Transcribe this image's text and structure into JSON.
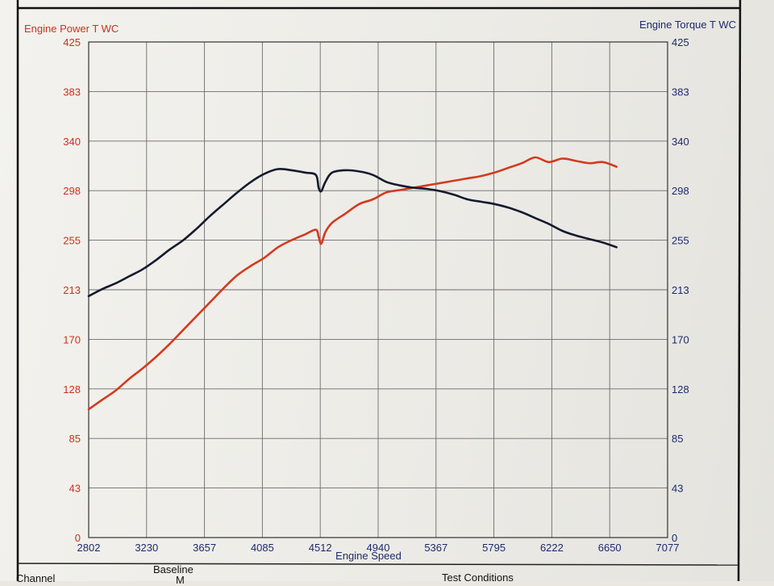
{
  "chart_data": {
    "type": "line",
    "xlabel": "Engine Speed",
    "xlim": [
      2802,
      7077
    ],
    "x_ticks": [
      "2802",
      "3230",
      "3657",
      "4085",
      "4512",
      "4940",
      "5367",
      "5795",
      "6222",
      "6650",
      "7077"
    ],
    "left_axis": {
      "label": "Engine Power T WC",
      "color": "#c8321e",
      "ylim": [
        0,
        425
      ],
      "ticks": [
        "0",
        "43",
        "85",
        "128",
        "170",
        "213",
        "255",
        "298",
        "340",
        "383",
        "425"
      ]
    },
    "right_axis": {
      "label": "Engine Torque T WC",
      "color": "#1d2a6b",
      "ylim": [
        0,
        425
      ],
      "ticks": [
        "0",
        "43",
        "85",
        "128",
        "170",
        "213",
        "255",
        "298",
        "340",
        "383",
        "425"
      ]
    },
    "grid": true,
    "series": [
      {
        "axis": "left",
        "color": "#d23a1e",
        "x": [
          2802,
          2900,
          3000,
          3100,
          3200,
          3300,
          3400,
          3500,
          3600,
          3700,
          3800,
          3900,
          4000,
          4100,
          4200,
          4300,
          4400,
          4480,
          4500,
          4520,
          4550,
          4600,
          4700,
          4800,
          4900,
          5000,
          5100,
          5200,
          5300,
          5400,
          5500,
          5600,
          5700,
          5800,
          5900,
          6000,
          6100,
          6200,
          6300,
          6400,
          6500,
          6600,
          6700
        ],
        "values": [
          110,
          118,
          126,
          136,
          145,
          155,
          166,
          178,
          190,
          202,
          214,
          225,
          233,
          240,
          249,
          255,
          260,
          264,
          258,
          252,
          262,
          270,
          278,
          286,
          290,
          296,
          298,
          300,
          302,
          304,
          306,
          308,
          310,
          313,
          317,
          321,
          326,
          322,
          325,
          323,
          321,
          322,
          318
        ]
      },
      {
        "axis": "right",
        "color": "#151a2e",
        "x": [
          2802,
          2900,
          3000,
          3100,
          3200,
          3300,
          3400,
          3500,
          3600,
          3700,
          3800,
          3900,
          4000,
          4100,
          4200,
          4300,
          4400,
          4480,
          4500,
          4520,
          4550,
          4600,
          4700,
          4800,
          4900,
          5000,
          5100,
          5200,
          5300,
          5400,
          5500,
          5600,
          5700,
          5800,
          5900,
          6000,
          6100,
          6200,
          6300,
          6400,
          6500,
          6600,
          6700
        ],
        "values": [
          207,
          213,
          218,
          224,
          230,
          238,
          247,
          255,
          265,
          276,
          286,
          296,
          305,
          312,
          316,
          315,
          313,
          311,
          300,
          297,
          305,
          313,
          315,
          314,
          311,
          305,
          302,
          300,
          299,
          297,
          294,
          290,
          288,
          286,
          283,
          279,
          274,
          269,
          263,
          259,
          256,
          253,
          249
        ]
      }
    ]
  },
  "footer": {
    "channel": "Channel",
    "baseline": "Baseline",
    "test_conditions": "Test Conditions",
    "partial": "M"
  }
}
